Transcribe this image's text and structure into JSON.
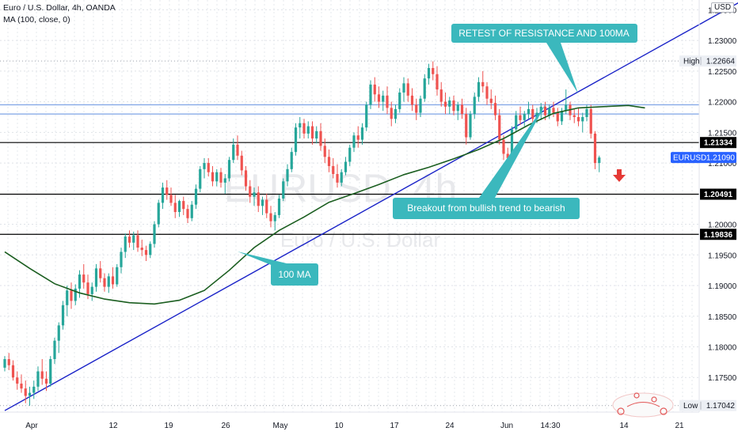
{
  "header": {
    "symbol_line": "Euro / U.S. Dollar, 4h, OANDA",
    "ma_line": "MA (100, close, 0)",
    "currency": "USD"
  },
  "watermark": {
    "main": "EURUSD, 4h",
    "sub": "Euro / U.S. Dollar"
  },
  "colors": {
    "up": "#26a69a",
    "down": "#ef5350",
    "ma": "#1b5e20",
    "trendline": "#1a23c8",
    "callout": "#3bb8bd",
    "blue_zone": "#7fa4e6",
    "level": "#000000",
    "arrow": "#e53935"
  },
  "chart_data": {
    "type": "candlestick",
    "instrument": "EURUSD",
    "timeframe": "4h",
    "price_axis": {
      "ylim": [
        1.16935,
        1.2366
      ],
      "ticks": [
        "1.17500",
        "1.18000",
        "1.18500",
        "1.19000",
        "1.19500",
        "1.20000",
        "1.21000",
        "1.21500",
        "1.22000",
        "1.22500",
        "1.23000",
        "1.23500"
      ]
    },
    "time_axis": {
      "ticks": [
        "Apr",
        "12",
        "19",
        "26",
        "May",
        "10",
        "17",
        "24",
        "Jun",
        "14:30",
        "14",
        "21"
      ]
    },
    "price_tags": [
      {
        "label": "High",
        "value": "1.22664",
        "style": "muted"
      },
      {
        "label": "",
        "value": "1.21334",
        "style": "level"
      },
      {
        "label": "EURUSD",
        "value": "1.21090",
        "style": "last"
      },
      {
        "label": "",
        "value": "1.20491",
        "style": "level"
      },
      {
        "label": "",
        "value": "1.19836",
        "style": "level"
      },
      {
        "label": "Low",
        "value": "1.17042",
        "style": "muted"
      }
    ],
    "horizontal_levels": [
      1.21334,
      1.20491,
      1.19836
    ],
    "blue_zone": [
      1.2195,
      1.218
    ],
    "annotations": [
      {
        "text": "RETEST OF RESISTANCE AND 100MA"
      },
      {
        "text": "Breakout from bullish trend to bearish"
      },
      {
        "text": "100 MA"
      }
    ],
    "trendline": [
      {
        "x": 0,
        "y": 1.1696
      },
      {
        "x": 179,
        "y": 1.2371
      }
    ],
    "ma_100": [
      [
        0,
        1.1955
      ],
      [
        6,
        1.1928
      ],
      [
        12,
        1.1903
      ],
      [
        18,
        1.1888
      ],
      [
        24,
        1.1878
      ],
      [
        30,
        1.1872
      ],
      [
        36,
        1.187
      ],
      [
        42,
        1.1876
      ],
      [
        48,
        1.1892
      ],
      [
        54,
        1.1925
      ],
      [
        60,
        1.1962
      ],
      [
        66,
        1.199
      ],
      [
        72,
        1.2012
      ],
      [
        78,
        1.2036
      ],
      [
        84,
        1.205
      ],
      [
        90,
        1.2065
      ],
      [
        96,
        1.2081
      ],
      [
        102,
        1.2093
      ],
      [
        108,
        1.2107
      ],
      [
        114,
        1.2122
      ],
      [
        120,
        1.214
      ],
      [
        126,
        1.2162
      ],
      [
        132,
        1.2181
      ],
      [
        138,
        1.219
      ],
      [
        144,
        1.2192
      ],
      [
        150,
        1.2194
      ],
      [
        154,
        1.219
      ]
    ],
    "ohlc": [
      [
        1.1766,
        1.1785,
        1.176,
        1.178
      ],
      [
        1.178,
        1.179,
        1.1762,
        1.177
      ],
      [
        1.177,
        1.1778,
        1.1745,
        1.175
      ],
      [
        1.175,
        1.176,
        1.173,
        1.174
      ],
      [
        1.174,
        1.1755,
        1.1725,
        1.1732
      ],
      [
        1.1732,
        1.1745,
        1.1708,
        1.172
      ],
      [
        1.172,
        1.1735,
        1.1704,
        1.1725
      ],
      [
        1.1725,
        1.1745,
        1.1715,
        1.1735
      ],
      [
        1.1735,
        1.1768,
        1.1728,
        1.176
      ],
      [
        1.176,
        1.178,
        1.1738,
        1.1748
      ],
      [
        1.1748,
        1.176,
        1.1728,
        1.174
      ],
      [
        1.174,
        1.1785,
        1.1735,
        1.178
      ],
      [
        1.178,
        1.1815,
        1.1772,
        1.181
      ],
      [
        1.181,
        1.184,
        1.179,
        1.1835
      ],
      [
        1.1835,
        1.1875,
        1.1828,
        1.1868
      ],
      [
        1.1868,
        1.19,
        1.185,
        1.1892
      ],
      [
        1.1892,
        1.1905,
        1.1862,
        1.1875
      ],
      [
        1.1875,
        1.1902,
        1.1868,
        1.1895
      ],
      [
        1.1895,
        1.1925,
        1.188,
        1.1918
      ],
      [
        1.1918,
        1.1935,
        1.1895,
        1.1905
      ],
      [
        1.1905,
        1.1918,
        1.1878,
        1.1886
      ],
      [
        1.1886,
        1.1905,
        1.1875,
        1.1898
      ],
      [
        1.1898,
        1.1935,
        1.189,
        1.1928
      ],
      [
        1.1928,
        1.194,
        1.1905,
        1.1912
      ],
      [
        1.1912,
        1.192,
        1.189,
        1.1898
      ],
      [
        1.1898,
        1.192,
        1.1888,
        1.1915
      ],
      [
        1.1915,
        1.193,
        1.1895,
        1.1902
      ],
      [
        1.1902,
        1.1935,
        1.1898,
        1.193
      ],
      [
        1.193,
        1.1962,
        1.192,
        1.1955
      ],
      [
        1.1955,
        1.1985,
        1.1945,
        1.198
      ],
      [
        1.198,
        1.199,
        1.1962,
        1.197
      ],
      [
        1.197,
        1.1988,
        1.1958,
        1.1982
      ],
      [
        1.1982,
        1.199,
        1.1955,
        1.1962
      ],
      [
        1.1962,
        1.1975,
        1.1948,
        1.1958
      ],
      [
        1.1958,
        1.1965,
        1.194,
        1.195
      ],
      [
        1.195,
        1.1972,
        1.1945,
        1.1968
      ],
      [
        1.1968,
        1.2005,
        1.1962,
        1.2
      ],
      [
        1.2,
        1.204,
        1.1995,
        1.2035
      ],
      [
        1.2035,
        1.2068,
        1.2025,
        1.206
      ],
      [
        1.206,
        1.2072,
        1.204,
        1.2048
      ],
      [
        1.2048,
        1.206,
        1.203,
        1.2035
      ],
      [
        1.2035,
        1.2048,
        1.201,
        1.202
      ],
      [
        1.202,
        1.204,
        1.2012,
        1.2038
      ],
      [
        1.2038,
        1.2045,
        1.2015,
        1.2025
      ],
      [
        1.2025,
        1.2032,
        1.2002,
        1.201
      ],
      [
        1.201,
        1.2038,
        1.2005,
        1.2032
      ],
      [
        1.2032,
        1.2065,
        1.2025,
        1.2058
      ],
      [
        1.2058,
        1.2095,
        1.2052,
        1.209
      ],
      [
        1.209,
        1.2108,
        1.2075,
        1.21
      ],
      [
        1.21,
        1.2108,
        1.2078,
        1.2085
      ],
      [
        1.2085,
        1.2095,
        1.2062,
        1.207
      ],
      [
        1.207,
        1.209,
        1.2062,
        1.2085
      ],
      [
        1.2085,
        1.2092,
        1.206,
        1.2068
      ],
      [
        1.2068,
        1.2082,
        1.205,
        1.2075
      ],
      [
        1.2075,
        1.211,
        1.207,
        1.2105
      ],
      [
        1.2105,
        1.214,
        1.21,
        1.213
      ],
      [
        1.213,
        1.2145,
        1.2105,
        1.2112
      ],
      [
        1.2112,
        1.212,
        1.208,
        1.2088
      ],
      [
        1.2088,
        1.2095,
        1.2055,
        1.2062
      ],
      [
        1.2062,
        1.2072,
        1.2035,
        1.2045
      ],
      [
        1.2045,
        1.206,
        1.203,
        1.2052
      ],
      [
        1.2052,
        1.2062,
        1.202,
        1.203
      ],
      [
        1.203,
        1.2045,
        1.2015,
        1.204
      ],
      [
        1.204,
        1.205,
        1.201,
        1.2018
      ],
      [
        1.2018,
        1.203,
        1.1995,
        1.2005
      ],
      [
        1.2005,
        1.202,
        1.199,
        1.2015
      ],
      [
        1.2015,
        1.2048,
        1.201,
        1.2042
      ],
      [
        1.2042,
        1.2075,
        1.2038,
        1.207
      ],
      [
        1.207,
        1.2098,
        1.2062,
        1.209
      ],
      [
        1.209,
        1.2125,
        1.2085,
        1.2118
      ],
      [
        1.2118,
        1.2165,
        1.2112,
        1.2158
      ],
      [
        1.2158,
        1.2175,
        1.214,
        1.2165
      ],
      [
        1.2165,
        1.2172,
        1.214,
        1.2148
      ],
      [
        1.2148,
        1.2168,
        1.214,
        1.216
      ],
      [
        1.216,
        1.2168,
        1.213,
        1.214
      ],
      [
        1.214,
        1.216,
        1.2132,
        1.2152
      ],
      [
        1.2152,
        1.2165,
        1.212,
        1.2128
      ],
      [
        1.2128,
        1.214,
        1.21,
        1.211
      ],
      [
        1.211,
        1.2122,
        1.2085,
        1.2095
      ],
      [
        1.2095,
        1.2108,
        1.2075,
        1.2082
      ],
      [
        1.2082,
        1.2098,
        1.206,
        1.2068
      ],
      [
        1.2068,
        1.209,
        1.2062,
        1.2085
      ],
      [
        1.2085,
        1.211,
        1.208,
        1.2102
      ],
      [
        1.2102,
        1.213,
        1.2095,
        1.2125
      ],
      [
        1.2125,
        1.215,
        1.2118,
        1.2145
      ],
      [
        1.2145,
        1.216,
        1.2125,
        1.2138
      ],
      [
        1.2138,
        1.2165,
        1.213,
        1.2158
      ],
      [
        1.2158,
        1.22,
        1.2152,
        1.2195
      ],
      [
        1.2195,
        1.2235,
        1.2188,
        1.2228
      ],
      [
        1.2228,
        1.224,
        1.22,
        1.2212
      ],
      [
        1.2212,
        1.2225,
        1.219,
        1.22
      ],
      [
        1.22,
        1.2218,
        1.2185,
        1.221
      ],
      [
        1.221,
        1.2225,
        1.218,
        1.219
      ],
      [
        1.219,
        1.22,
        1.216,
        1.2172
      ],
      [
        1.2172,
        1.2195,
        1.2165,
        1.2188
      ],
      [
        1.2188,
        1.2222,
        1.2182,
        1.2215
      ],
      [
        1.2215,
        1.224,
        1.22,
        1.223
      ],
      [
        1.223,
        1.2238,
        1.22,
        1.221
      ],
      [
        1.221,
        1.2222,
        1.2185,
        1.2195
      ],
      [
        1.2195,
        1.2205,
        1.217,
        1.2182
      ],
      [
        1.2182,
        1.221,
        1.2175,
        1.2205
      ],
      [
        1.2205,
        1.2245,
        1.22,
        1.2238
      ],
      [
        1.2238,
        1.2262,
        1.2228,
        1.2255
      ],
      [
        1.2255,
        1.2266,
        1.2235,
        1.2245
      ],
      [
        1.2245,
        1.2258,
        1.221,
        1.222
      ],
      [
        1.222,
        1.2232,
        1.2192,
        1.22
      ],
      [
        1.22,
        1.2215,
        1.218,
        1.2192
      ],
      [
        1.2192,
        1.2208,
        1.218,
        1.2202
      ],
      [
        1.2202,
        1.221,
        1.2178,
        1.2185
      ],
      [
        1.2185,
        1.22,
        1.217,
        1.2195
      ],
      [
        1.2195,
        1.2205,
        1.2172,
        1.218
      ],
      [
        1.218,
        1.219,
        1.213,
        1.2142
      ],
      [
        1.2142,
        1.2185,
        1.2138,
        1.218
      ],
      [
        1.218,
        1.2215,
        1.2172,
        1.2208
      ],
      [
        1.2208,
        1.224,
        1.22,
        1.2232
      ],
      [
        1.2232,
        1.225,
        1.2215,
        1.2225
      ],
      [
        1.2225,
        1.2232,
        1.2195,
        1.2205
      ],
      [
        1.2205,
        1.222,
        1.2188,
        1.2198
      ],
      [
        1.2198,
        1.221,
        1.217,
        1.2178
      ],
      [
        1.2178,
        1.2188,
        1.213,
        1.2138
      ],
      [
        1.2138,
        1.2145,
        1.2105,
        1.2115
      ],
      [
        1.2115,
        1.2125,
        1.2098,
        1.2108
      ],
      [
        1.2108,
        1.216,
        1.2102,
        1.2155
      ],
      [
        1.2155,
        1.2185,
        1.215,
        1.2178
      ],
      [
        1.2178,
        1.2192,
        1.2162,
        1.217
      ],
      [
        1.217,
        1.2185,
        1.216,
        1.218
      ],
      [
        1.218,
        1.22,
        1.2172,
        1.2188
      ],
      [
        1.2188,
        1.2195,
        1.2165,
        1.2172
      ],
      [
        1.2172,
        1.219,
        1.2165,
        1.2182
      ],
      [
        1.2182,
        1.2198,
        1.217,
        1.2192
      ],
      [
        1.2192,
        1.22,
        1.217,
        1.2178
      ],
      [
        1.2178,
        1.2195,
        1.2172,
        1.219
      ],
      [
        1.219,
        1.22,
        1.2175,
        1.2182
      ],
      [
        1.2182,
        1.219,
        1.216,
        1.2168
      ],
      [
        1.2168,
        1.219,
        1.2162,
        1.2185
      ],
      [
        1.2185,
        1.222,
        1.218,
        1.2195
      ],
      [
        1.2195,
        1.22,
        1.217,
        1.2178
      ],
      [
        1.2178,
        1.2188,
        1.2165,
        1.2175
      ],
      [
        1.2175,
        1.219,
        1.216,
        1.2168
      ],
      [
        1.2168,
        1.2182,
        1.215,
        1.2175
      ],
      [
        1.2175,
        1.2195,
        1.2168,
        1.2188
      ],
      [
        1.2188,
        1.2195,
        1.214,
        1.2148
      ],
      [
        1.2148,
        1.2152,
        1.209,
        1.21
      ],
      [
        1.21,
        1.2112,
        1.2085,
        1.2109
      ]
    ]
  }
}
